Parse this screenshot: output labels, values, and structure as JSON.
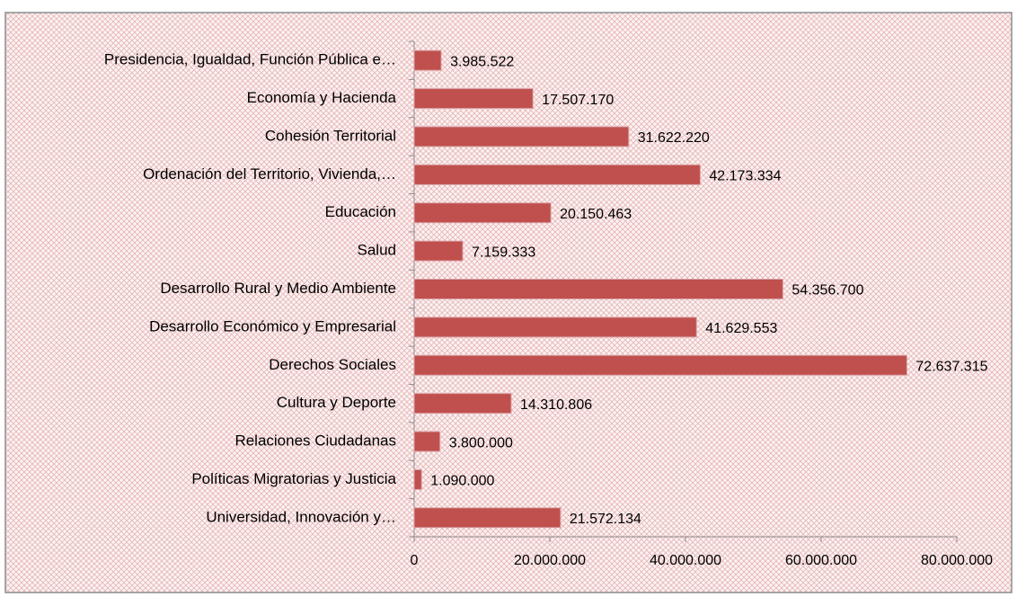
{
  "chart_data": {
    "type": "bar",
    "orientation": "horizontal",
    "categories": [
      "Presidencia, Igualdad, Función Pública e…",
      "Economía y Hacienda",
      "Cohesión Territorial",
      "Ordenación del Territorio, Vivienda,…",
      "Educación",
      "Salud",
      "Desarrollo Rural y Medio Ambiente",
      "Desarrollo Económico y Empresarial",
      "Derechos Sociales",
      "Cultura y Deporte",
      "Relaciones Ciudadanas",
      "Políticas Migratorias y Justicia",
      "Universidad, Innovación y…"
    ],
    "values": [
      3985522,
      17507170,
      31622220,
      42173334,
      20150463,
      7159333,
      54356700,
      41629553,
      72637315,
      14310806,
      3800000,
      1090000,
      21572134
    ],
    "value_labels": [
      "3.985.522",
      "17.507.170",
      "31.622.220",
      "42.173.334",
      "20.150.463",
      "7.159.333",
      "54.356.700",
      "41.629.553",
      "72.637.315",
      "14.310.806",
      "3.800.000",
      "1.090.000",
      "21.572.134"
    ],
    "color": "#c0504d",
    "xlim": [
      0,
      80000000
    ],
    "xticks": [
      0,
      {
        "value": 20000000,
        "label": "20.000.000"
      },
      {
        "value": 40000000,
        "label": "40.000.000"
      },
      {
        "value": 60000000,
        "label": "60.000.000"
      },
      {
        "value": 80000000,
        "label": "80.000.000"
      }
    ],
    "grid": false
  }
}
